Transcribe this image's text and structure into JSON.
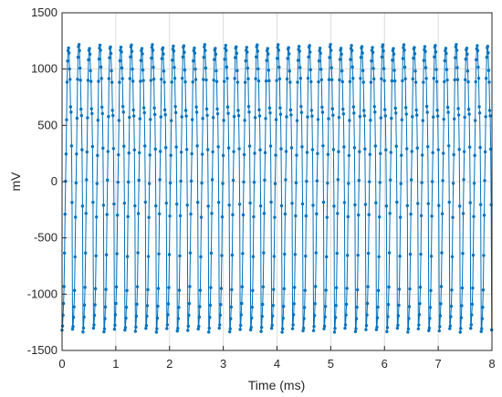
{
  "chart_data": {
    "type": "line",
    "title": "",
    "xlabel": "Time (ms)",
    "ylabel": "mV",
    "xlim": [
      0,
      8
    ],
    "ylim": [
      -1500,
      1500
    ],
    "xticks": [
      0,
      1,
      2,
      3,
      4,
      5,
      6,
      7,
      8
    ],
    "yticks": [
      -1500,
      -1000,
      -500,
      0,
      500,
      1000,
      1500
    ],
    "grid": true,
    "legend": "none",
    "series": [
      {
        "color": "#0072BD",
        "marker": "dot",
        "description_period_ms": 0.195,
        "samples_per_period": 21,
        "y": [
          -1320,
          -1290,
          -1200,
          -1100,
          -950,
          -650,
          -300,
          0,
          250,
          560,
          900,
          1090,
          1180,
          1200,
          1150,
          1000,
          900,
          650,
          600,
          300,
          -200
        ]
      }
    ]
  },
  "colors": {
    "series": "#0072BD",
    "grid": "#dcdcdc",
    "axis": "#262626",
    "background": "#ffffff"
  }
}
